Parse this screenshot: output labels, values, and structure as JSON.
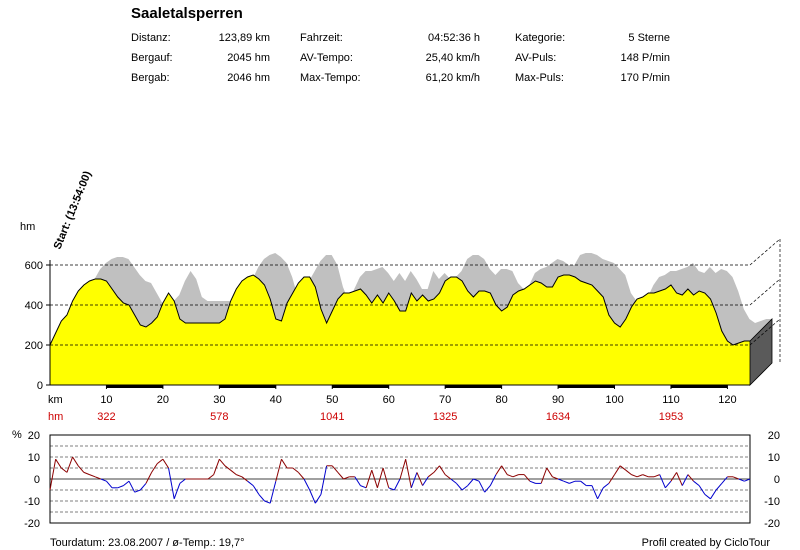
{
  "header": {
    "title": "Saaletalsperren",
    "stats": [
      {
        "label": "Distanz:",
        "value": "123,89 km"
      },
      {
        "label": "Bergauf:",
        "value": "2045 hm"
      },
      {
        "label": "Bergab:",
        "value": "2046 hm"
      },
      {
        "label": "Fahrzeit:",
        "value": "04:52:36 h"
      },
      {
        "label": "AV-Tempo:",
        "value": "25,40 km/h"
      },
      {
        "label": "Max-Tempo:",
        "value": "61,20 km/h"
      },
      {
        "label": "Kategorie:",
        "value": "5 Sterne"
      },
      {
        "label": "AV-Puls:",
        "value": "148 P/min"
      },
      {
        "label": "Max-Puls:",
        "value": "170 P/min"
      }
    ]
  },
  "footer": {
    "left": "Tourdatum: 23.08.2007  /  ø-Temp.: 19,7°",
    "right": "Profil created by CicloTour"
  },
  "colors": {
    "profile_fill": "#ffff00",
    "shadow": "#c0c0c0",
    "climb": "#8b0000",
    "descent": "#0000cd",
    "hm_text": "#cc0000"
  },
  "chart_data": [
    {
      "type": "area",
      "start_label": "Start: (13:54:00)",
      "ylabel": "hm",
      "xlabel": "km",
      "ylim": [
        0,
        600
      ],
      "xlim": [
        0,
        124
      ],
      "yticks": [
        0,
        200,
        400,
        600
      ],
      "xticks": [
        10,
        20,
        30,
        40,
        50,
        60,
        70,
        80,
        90,
        100,
        110,
        120
      ],
      "hm_row_label": "hm",
      "cumulative_climb_labels": [
        {
          "km": 10,
          "hm": "322"
        },
        {
          "km": 30,
          "hm": "578"
        },
        {
          "km": 50,
          "hm": "1041"
        },
        {
          "km": 70,
          "hm": "1325"
        },
        {
          "km": 90,
          "hm": "1634"
        },
        {
          "km": 110,
          "hm": "1953"
        }
      ],
      "grid": "dashed at 200, 400, 600",
      "series": [
        {
          "x": [
            0,
            1,
            2,
            3,
            4,
            5,
            6,
            7,
            8,
            9,
            10,
            11,
            12,
            13,
            14,
            15,
            16,
            17,
            18,
            19,
            20,
            21,
            22,
            23,
            24,
            25,
            26,
            27,
            28,
            29,
            30,
            31,
            32,
            33,
            34,
            35,
            36,
            37,
            38,
            39,
            40,
            41,
            42,
            43,
            44,
            45,
            46,
            47,
            48,
            49,
            50,
            51,
            52,
            53,
            54,
            55,
            56,
            57,
            58,
            59,
            60,
            61,
            62,
            63,
            64,
            65,
            66,
            67,
            68,
            69,
            70,
            71,
            72,
            73,
            74,
            75,
            76,
            77,
            78,
            79,
            80,
            81,
            82,
            83,
            84,
            85,
            86,
            87,
            88,
            89,
            90,
            91,
            92,
            93,
            94,
            95,
            96,
            97,
            98,
            99,
            100,
            101,
            102,
            103,
            104,
            105,
            106,
            107,
            108,
            109,
            110,
            111,
            112,
            113,
            114,
            115,
            116,
            117,
            118,
            119,
            120,
            121,
            122,
            123,
            124
          ],
          "values": [
            200,
            260,
            320,
            350,
            420,
            470,
            500,
            520,
            530,
            530,
            520,
            480,
            440,
            410,
            400,
            350,
            300,
            290,
            310,
            340,
            410,
            460,
            420,
            330,
            310,
            310,
            310,
            310,
            310,
            310,
            310,
            330,
            420,
            480,
            520,
            540,
            550,
            530,
            500,
            430,
            330,
            320,
            410,
            460,
            510,
            540,
            540,
            490,
            380,
            310,
            370,
            430,
            460,
            460,
            470,
            480,
            450,
            410,
            450,
            410,
            460,
            420,
            370,
            370,
            460,
            420,
            450,
            420,
            430,
            460,
            520,
            540,
            540,
            520,
            470,
            440,
            470,
            470,
            460,
            400,
            370,
            390,
            450,
            470,
            480,
            500,
            520,
            510,
            490,
            490,
            540,
            550,
            550,
            540,
            520,
            510,
            500,
            470,
            440,
            350,
            310,
            290,
            330,
            390,
            430,
            440,
            460,
            460,
            470,
            480,
            500,
            460,
            450,
            480,
            450,
            470,
            460,
            430,
            360,
            270,
            220,
            200,
            210,
            220,
            220
          ]
        }
      ]
    },
    {
      "type": "line",
      "ylabel": "%",
      "ylim": [
        -20,
        20
      ],
      "yticks": [
        -20,
        -10,
        0,
        10,
        20
      ],
      "grid": "dashed at -15, -10, -5, 5, 10, 15",
      "series": [
        {
          "name": "Steigung",
          "x": [
            0,
            1,
            2,
            3,
            4,
            5,
            6,
            7,
            8,
            9,
            10,
            11,
            12,
            13,
            14,
            15,
            16,
            17,
            18,
            19,
            20,
            21,
            22,
            23,
            24,
            25,
            26,
            27,
            28,
            29,
            30,
            31,
            32,
            33,
            34,
            35,
            36,
            37,
            38,
            39,
            40,
            41,
            42,
            43,
            44,
            45,
            46,
            47,
            48,
            49,
            50,
            51,
            52,
            53,
            54,
            55,
            56,
            57,
            58,
            59,
            60,
            61,
            62,
            63,
            64,
            65,
            66,
            67,
            68,
            69,
            70,
            71,
            72,
            73,
            74,
            75,
            76,
            77,
            78,
            79,
            80,
            81,
            82,
            83,
            84,
            85,
            86,
            87,
            88,
            89,
            90,
            91,
            92,
            93,
            94,
            95,
            96,
            97,
            98,
            99,
            100,
            101,
            102,
            103,
            104,
            105,
            106,
            107,
            108,
            109,
            110,
            111,
            112,
            113,
            114,
            115,
            116,
            117,
            118,
            119,
            120,
            121,
            122,
            123,
            124
          ],
          "values": [
            -5,
            9,
            5,
            3,
            10,
            6,
            3,
            2,
            1,
            0,
            -1,
            -4,
            -4,
            -3,
            -1,
            -6,
            -5,
            -2,
            3,
            7,
            9,
            5,
            -9,
            -2,
            0,
            0,
            0,
            0,
            0,
            2,
            9,
            6,
            4,
            2,
            1,
            -1,
            -3,
            -7,
            -10,
            -11,
            -1,
            9,
            5,
            5,
            3,
            0,
            -5,
            -11,
            -7,
            6,
            6,
            3,
            0,
            1,
            1,
            -3,
            -4,
            4,
            -4,
            5,
            -4,
            -5,
            0,
            9,
            -4,
            3,
            -3,
            1,
            3,
            6,
            2,
            0,
            -2,
            -5,
            -3,
            0,
            -1,
            -6,
            -3,
            2,
            6,
            2,
            1,
            2,
            2,
            -1,
            -2,
            -2,
            5,
            1,
            0,
            -1,
            -2,
            -1,
            -1,
            -3,
            -3,
            -9,
            -4,
            -2,
            2,
            6,
            4,
            2,
            1,
            2,
            1,
            1,
            2,
            -4,
            -1,
            3,
            -3,
            2,
            -1,
            -3,
            -7,
            -9,
            -5,
            -2,
            1,
            1,
            0,
            -1,
            0
          ]
        }
      ]
    }
  ]
}
